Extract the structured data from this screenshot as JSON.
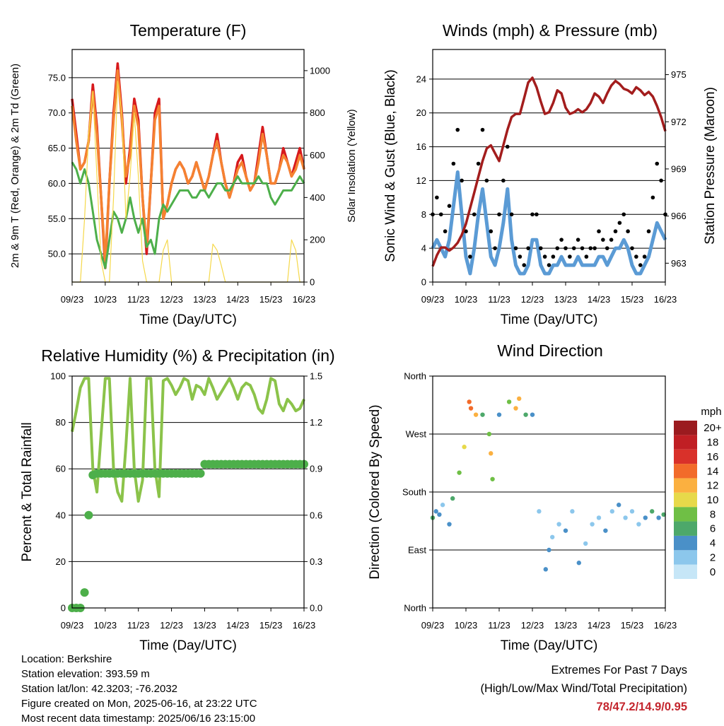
{
  "chart_data": [
    {
      "type": "line",
      "title": "Temperature (F)",
      "xlabel": "Time (Day/UTC)",
      "ylabel": "2m & 9m T (Red, Orange) & 2m Td (Green)",
      "ylabel_right": "Solar Insolation (Yellow)",
      "x_ticks": [
        "09/23",
        "10/23",
        "11/23",
        "12/23",
        "13/23",
        "14/23",
        "15/23",
        "16/23"
      ],
      "y_ticks": [
        "50.0",
        "55.0",
        "60.0",
        "65.0",
        "70.0",
        "75.0"
      ],
      "y2_ticks": [
        "0",
        "200",
        "400",
        "600",
        "800",
        "1000"
      ],
      "ylim": [
        46,
        79
      ],
      "y2lim": [
        0,
        1100
      ],
      "x": [
        0,
        0.125,
        0.25,
        0.375,
        0.5,
        0.625,
        0.75,
        0.875,
        1.0,
        1.125,
        1.25,
        1.375,
        1.5,
        1.625,
        1.75,
        1.875,
        2.0,
        2.125,
        2.25,
        2.375,
        2.5,
        2.625,
        2.75,
        2.875,
        3.0,
        3.125,
        3.25,
        3.375,
        3.5,
        3.625,
        3.75,
        3.875,
        4.0,
        4.125,
        4.25,
        4.375,
        4.5,
        4.625,
        4.75,
        4.875,
        5.0,
        5.125,
        5.25,
        5.375,
        5.5,
        5.625,
        5.75,
        5.875,
        6.0,
        6.125,
        6.25,
        6.375,
        6.5,
        6.625,
        6.75,
        6.875,
        7.0
      ],
      "series": [
        {
          "name": "2m T",
          "color": "#d7191c",
          "values": [
            72,
            67,
            62,
            63,
            66,
            74,
            68,
            58,
            48,
            60,
            70,
            77,
            70,
            60,
            65,
            72,
            69,
            58,
            50,
            60,
            70,
            72,
            55,
            57,
            60,
            62,
            63,
            62,
            60,
            61,
            63,
            61,
            59,
            61,
            64,
            67,
            63,
            60,
            58,
            60,
            63,
            64,
            61,
            59,
            60,
            64,
            68,
            64,
            60,
            60,
            62,
            65,
            63,
            61,
            63,
            65,
            62
          ]
        },
        {
          "name": "9m T",
          "color": "#f58231",
          "values": [
            71,
            66,
            62,
            63,
            66,
            73,
            67,
            58,
            49,
            60,
            69,
            76,
            69,
            61,
            64,
            71,
            68,
            58,
            51,
            60,
            69,
            71,
            55,
            57,
            60,
            62,
            63,
            62,
            60,
            61,
            63,
            61,
            59,
            61,
            64,
            66,
            63,
            60,
            58,
            60,
            62,
            63,
            61,
            59,
            60,
            63,
            67,
            64,
            60,
            60,
            62,
            64,
            63,
            61,
            62,
            64,
            62
          ]
        },
        {
          "name": "2m Td",
          "color": "#4daf4a",
          "values": [
            63,
            62,
            60,
            62,
            60,
            56,
            52,
            50,
            48,
            52,
            56,
            55,
            53,
            55,
            58,
            55,
            53,
            55,
            51,
            52,
            50,
            55,
            57,
            56,
            57,
            58,
            59,
            59,
            59,
            58,
            58,
            59,
            59,
            58,
            59,
            60,
            60,
            59,
            59,
            60,
            61,
            60,
            60,
            60,
            60,
            61,
            60,
            60,
            58,
            57,
            58,
            59,
            59,
            59,
            60,
            61,
            60
          ]
        },
        {
          "name": "Solar Insolation",
          "color": "#f5d84a",
          "axis": "right",
          "values": [
            0,
            0,
            0,
            300,
            700,
            900,
            500,
            100,
            0,
            0,
            400,
            950,
            800,
            300,
            500,
            800,
            500,
            100,
            0,
            0,
            0,
            0,
            150,
            200,
            0,
            0,
            0,
            0,
            0,
            0,
            0,
            0,
            0,
            0,
            180,
            150,
            80,
            0,
            0,
            0,
            0,
            0,
            0,
            0,
            0,
            0,
            0,
            0,
            0,
            0,
            0,
            0,
            0,
            200,
            150,
            0,
            0
          ]
        }
      ]
    },
    {
      "type": "scatter",
      "title": "Winds (mph) & Pressure (mb)",
      "xlabel": "Time (Day/UTC)",
      "ylabel": "Sonic Wind & Gust (Blue, Black)",
      "ylabel_right": "Station Pressure (Maroon)",
      "x_ticks": [
        "09/23",
        "10/23",
        "11/23",
        "12/23",
        "13/23",
        "14/23",
        "15/23",
        "16/23"
      ],
      "y_ticks": [
        "0",
        "4",
        "8",
        "12",
        "16",
        "20",
        "24"
      ],
      "y2_ticks": [
        "963",
        "966",
        "969",
        "972",
        "975"
      ],
      "ylim": [
        0,
        27.5
      ],
      "y2lim": [
        961.8,
        976.6
      ],
      "x": [
        0,
        0.125,
        0.25,
        0.375,
        0.5,
        0.625,
        0.75,
        0.875,
        1.0,
        1.125,
        1.25,
        1.375,
        1.5,
        1.625,
        1.75,
        1.875,
        2.0,
        2.125,
        2.25,
        2.375,
        2.5,
        2.625,
        2.75,
        2.875,
        3.0,
        3.125,
        3.25,
        3.375,
        3.5,
        3.625,
        3.75,
        3.875,
        4.0,
        4.125,
        4.25,
        4.375,
        4.5,
        4.625,
        4.75,
        4.875,
        5.0,
        5.125,
        5.25,
        5.375,
        5.5,
        5.625,
        5.75,
        5.875,
        6.0,
        6.125,
        6.25,
        6.375,
        6.5,
        6.625,
        6.75,
        6.875,
        7.0
      ],
      "series": [
        {
          "name": "Gust",
          "color": "#000000",
          "values": [
            8,
            10,
            8,
            6,
            9,
            14,
            18,
            12,
            6,
            3,
            8,
            14,
            18,
            12,
            6,
            4,
            8,
            12,
            16,
            8,
            4,
            3,
            2,
            4,
            8,
            8,
            4,
            3,
            2,
            3,
            4,
            5,
            4,
            3,
            4,
            5,
            4,
            3,
            4,
            4,
            6,
            5,
            4,
            5,
            6,
            7,
            8,
            6,
            4,
            3,
            2,
            3,
            6,
            10,
            14,
            12,
            8
          ]
        },
        {
          "name": "Sonic Wind",
          "color": "#5b9bd5",
          "values": [
            4,
            5,
            4,
            3,
            5,
            9,
            13,
            8,
            3,
            1,
            4,
            8,
            11,
            7,
            3,
            2,
            4,
            7,
            11,
            5,
            2,
            1,
            1,
            2,
            5,
            5,
            2,
            1,
            1,
            2,
            2,
            3,
            2,
            2,
            2,
            3,
            2,
            2,
            2,
            2,
            3,
            3,
            2,
            3,
            4,
            4,
            5,
            4,
            2,
            1,
            1,
            2,
            3,
            5,
            7,
            6,
            5
          ]
        },
        {
          "name": "Station Pressure",
          "color": "#a31d1d",
          "axis": "right",
          "values": [
            962.8,
            963.5,
            964,
            964,
            963.8,
            964,
            964.3,
            964.8,
            965.5,
            966.5,
            967.5,
            968.5,
            969.5,
            970.3,
            970.5,
            970,
            969.5,
            970.5,
            971.5,
            972.3,
            972.5,
            972.5,
            973.5,
            974.5,
            974.8,
            974.2,
            973.3,
            972.5,
            972.6,
            973.2,
            974,
            973.8,
            972.9,
            972.5,
            972.6,
            972.8,
            972.6,
            972.8,
            973.2,
            973.8,
            973.6,
            973.2,
            973.8,
            974.3,
            974.6,
            974.4,
            974.1,
            974.0,
            973.8,
            974.2,
            974.0,
            973.7,
            973.9,
            973.6,
            973.0,
            972.3,
            971.4
          ]
        }
      ]
    },
    {
      "type": "scatter",
      "title": "Relative Humidity (%) & Precipitation (in)",
      "xlabel": "Time (Day/UTC)",
      "ylabel": "Percent & Total Rainfall",
      "x_ticks": [
        "09/23",
        "10/23",
        "11/23",
        "12/23",
        "13/23",
        "14/23",
        "15/23",
        "16/23"
      ],
      "y_ticks": [
        "0",
        "20",
        "40",
        "60",
        "80",
        "100"
      ],
      "y2_ticks": [
        "0.0",
        "0.3",
        "0.6",
        "0.9",
        "1.2",
        "1.5"
      ],
      "ylim": [
        0,
        100
      ],
      "y2lim": [
        0,
        1.5
      ],
      "x": [
        0,
        0.125,
        0.25,
        0.375,
        0.5,
        0.625,
        0.75,
        0.875,
        1.0,
        1.125,
        1.25,
        1.375,
        1.5,
        1.625,
        1.75,
        1.875,
        2.0,
        2.125,
        2.25,
        2.375,
        2.5,
        2.625,
        2.75,
        2.875,
        3.0,
        3.125,
        3.25,
        3.375,
        3.5,
        3.625,
        3.75,
        3.875,
        4.0,
        4.125,
        4.25,
        4.375,
        4.5,
        4.625,
        4.75,
        4.875,
        5.0,
        5.125,
        5.25,
        5.375,
        5.5,
        5.625,
        5.75,
        5.875,
        6.0,
        6.125,
        6.25,
        6.375,
        6.5,
        6.625,
        6.75,
        6.875,
        7.0
      ],
      "series": [
        {
          "name": "Relative Humidity",
          "color": "#8bc34a",
          "values": [
            76,
            85,
            95,
            99,
            99,
            60,
            50,
            75,
            99,
            99,
            60,
            50,
            46,
            70,
            99,
            60,
            46,
            55,
            99,
            99,
            60,
            48,
            98,
            99,
            96,
            92,
            95,
            99,
            98,
            90,
            96,
            95,
            92,
            99,
            95,
            90,
            93,
            96,
            99,
            95,
            90,
            95,
            97,
            96,
            92,
            86,
            84,
            90,
            99,
            98,
            88,
            85,
            90,
            88,
            85,
            86,
            90
          ]
        },
        {
          "name": "Total Rainfall",
          "color": "#4daf4a",
          "axis": "right",
          "values": [
            0,
            0,
            0,
            0.1,
            0.6,
            0.86,
            0.87,
            0.87,
            0.87,
            0.87,
            0.87,
            0.87,
            0.87,
            0.87,
            0.87,
            0.87,
            0.87,
            0.87,
            0.87,
            0.87,
            0.87,
            0.87,
            0.87,
            0.87,
            0.87,
            0.87,
            0.87,
            0.87,
            0.87,
            0.87,
            0.87,
            0.87,
            0.93,
            0.93,
            0.93,
            0.93,
            0.93,
            0.93,
            0.93,
            0.93,
            0.93,
            0.93,
            0.93,
            0.93,
            0.93,
            0.93,
            0.93,
            0.93,
            0.93,
            0.93,
            0.93,
            0.93,
            0.93,
            0.93,
            0.93,
            0.93,
            0.93
          ]
        }
      ]
    },
    {
      "type": "scatter",
      "title": "Wind Direction",
      "xlabel": "Time (Day/UTC)",
      "ylabel": "Direction (Colored By Speed)",
      "x_ticks": [
        "09/23",
        "10/23",
        "11/23",
        "12/23",
        "13/23",
        "14/23",
        "15/23",
        "16/23"
      ],
      "y_ticks": [
        "North",
        "East",
        "South",
        "West",
        "North"
      ],
      "ylim": [
        0,
        360
      ],
      "colorbar": {
        "title": "mph",
        "labels": [
          "0",
          "2",
          "4",
          "6",
          "8",
          "10",
          "12",
          "14",
          "16",
          "18",
          "20+"
        ],
        "colors": [
          "#c6e6f7",
          "#8cc7ec",
          "#4a90c8",
          "#4da86a",
          "#6fbf45",
          "#e7d94a",
          "#fbb040",
          "#f26b2a",
          "#d9312a",
          "#c01f24",
          "#9b1b1f"
        ]
      },
      "x": [
        0,
        0.1,
        0.2,
        0.3,
        0.5,
        0.6,
        0.8,
        0.95,
        1.1,
        1.15,
        1.3,
        1.5,
        1.7,
        1.75,
        1.8,
        2.0,
        2.3,
        2.5,
        2.6,
        2.8,
        3.0,
        3.2,
        3.4,
        3.5,
        3.6,
        3.8,
        4.0,
        4.2,
        4.4,
        4.6,
        4.8,
        5.0,
        5.2,
        5.4,
        5.6,
        5.8,
        6.0,
        6.2,
        6.4,
        6.6,
        6.8,
        6.95
      ],
      "values": [
        140,
        150,
        145,
        160,
        130,
        170,
        210,
        250,
        320,
        310,
        300,
        300,
        270,
        240,
        200,
        300,
        320,
        310,
        325,
        300,
        300,
        150,
        60,
        90,
        110,
        130,
        120,
        150,
        70,
        100,
        130,
        140,
        120,
        150,
        160,
        140,
        150,
        130,
        140,
        150,
        140,
        145
      ],
      "speeds": [
        6,
        4,
        5,
        3,
        4,
        6,
        8,
        10,
        14,
        15,
        12,
        6,
        9,
        12,
        8,
        5,
        8,
        13,
        12,
        6,
        4,
        3,
        5,
        4,
        3,
        2,
        4,
        3,
        4,
        2,
        3,
        2,
        4,
        3,
        4,
        2,
        3,
        2,
        4,
        6,
        5,
        6
      ]
    }
  ],
  "info": {
    "location": "Location: Berkshire",
    "elevation": "Station elevation: 393.59 m",
    "latlon": "Station lat/lon: 42.3203; -76.2032",
    "created": "Figure created on Mon, 2025-06-16, at 23:22 UTC",
    "recent": "Most recent data timestamp: 2025/06/16 23:15:00"
  },
  "extremes": {
    "heading": "Extremes For Past 7 Days",
    "subheading": "(High/Low/Max Wind/Total Precipitation)",
    "values": "78/47.2/14.9/0.95"
  }
}
